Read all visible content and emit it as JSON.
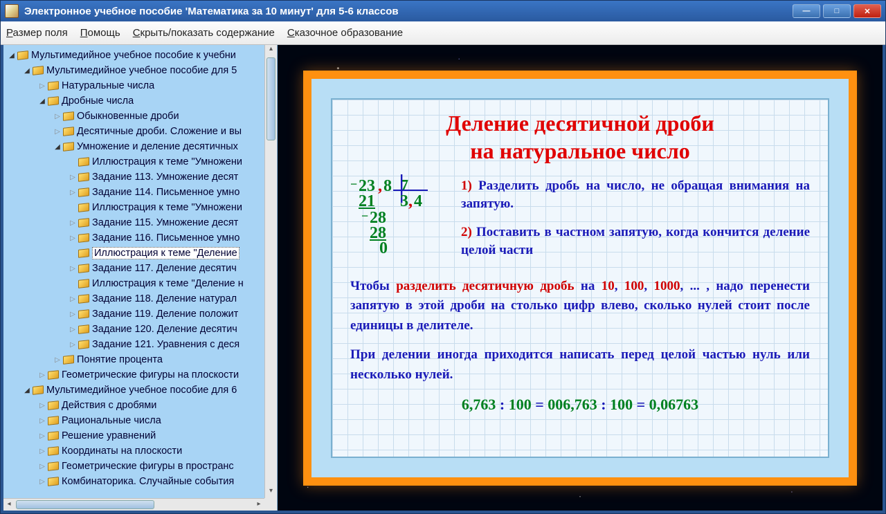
{
  "window": {
    "title": "Электронное учебное пособие 'Математика за 10 минут' для 5-6 классов"
  },
  "menu": {
    "field_size": "Размер поля",
    "help": "Помощь",
    "toggle_toc": "Скрыть/показать содержание",
    "fairy_edu": "Сказочное образование"
  },
  "tree": [
    {
      "d": 0,
      "t": "open",
      "label": "Мультимедийное учебное пособие к учебни"
    },
    {
      "d": 1,
      "t": "open",
      "label": "Мультимедийное учебное пособие для 5"
    },
    {
      "d": 2,
      "t": "closed",
      "label": "Натуральные числа"
    },
    {
      "d": 2,
      "t": "open",
      "label": "Дробные числа"
    },
    {
      "d": 3,
      "t": "closed",
      "label": "Обыкновенные дроби"
    },
    {
      "d": 3,
      "t": "closed",
      "label": "Десятичные дроби. Сложение и вы"
    },
    {
      "d": 3,
      "t": "open",
      "label": "Умножение и деление десятичных"
    },
    {
      "d": 4,
      "t": "leaf",
      "label": "Иллюстрация к теме \"Умножени"
    },
    {
      "d": 4,
      "t": "closed",
      "label": "Задание 113. Умножение десят"
    },
    {
      "d": 4,
      "t": "closed",
      "label": "Задание 114. Письменное умно"
    },
    {
      "d": 4,
      "t": "leaf",
      "label": "Иллюстрация к теме \"Умножени"
    },
    {
      "d": 4,
      "t": "closed",
      "label": "Задание 115. Умножение десят"
    },
    {
      "d": 4,
      "t": "closed",
      "label": "Задание 116. Письменное умно"
    },
    {
      "d": 4,
      "t": "leaf",
      "label": "Иллюстрация к теме \"Деление ",
      "sel": true
    },
    {
      "d": 4,
      "t": "closed",
      "label": "Задание 117. Деление десятич"
    },
    {
      "d": 4,
      "t": "leaf",
      "label": "Иллюстрация к теме \"Деление н"
    },
    {
      "d": 4,
      "t": "closed",
      "label": "Задание 118. Деление натурал"
    },
    {
      "d": 4,
      "t": "closed",
      "label": "Задание 119. Деление положит"
    },
    {
      "d": 4,
      "t": "closed",
      "label": "Задание 120. Деление десятич"
    },
    {
      "d": 4,
      "t": "closed",
      "label": "Задание 121. Уравнения с деся"
    },
    {
      "d": 3,
      "t": "closed",
      "label": "Понятие процента"
    },
    {
      "d": 2,
      "t": "closed",
      "label": "Геометрические фигуры на плоскости"
    },
    {
      "d": 1,
      "t": "open",
      "label": "Мультимедийное учебное пособие для 6"
    },
    {
      "d": 2,
      "t": "closed",
      "label": "Действия с дробями"
    },
    {
      "d": 2,
      "t": "closed",
      "label": "Рациональные числа"
    },
    {
      "d": 2,
      "t": "closed",
      "label": "Решение уравнений"
    },
    {
      "d": 2,
      "t": "closed",
      "label": "Координаты на плоскости"
    },
    {
      "d": 2,
      "t": "closed",
      "label": "Геометрические фигуры в пространс"
    },
    {
      "d": 2,
      "t": "closed",
      "label": "Комбинаторика. Случайные события"
    }
  ],
  "slide": {
    "title_l1": "Деление десятичной дроби",
    "title_l2": "на натуральное число",
    "division": {
      "dividend_int": "23",
      "dividend_comma": ",",
      "dividend_frac": "8",
      "divisor": "7",
      "quot_int": "3",
      "quot_comma": ",",
      "quot_frac": "4",
      "s1": "21",
      "r1": "28",
      "s2": "28",
      "r2": "0"
    },
    "rule1_num": "1)",
    "rule1": "Разделить дробь на число, не обращая внимания на запятую.",
    "rule2_num": "2)",
    "rule2": "Поставить в частном запятую, когда кончится деление целой части",
    "para1_a": "Чтобы ",
    "para1_red": "разделить десятичную дробь",
    "para1_b": " на ",
    "n10": "10",
    "n100": "100",
    "n1000": "1000",
    "para1_c": ", ... , надо перенести запятую в этой дроби на столько цифр влево, сколько нулей стоит после единицы в делителе.",
    "para2": "При делении иногда приходится написать перед целой частью нуль или несколько нулей.",
    "ex_a": "6,763",
    "ex_colon": " : ",
    "ex_100": "100",
    "ex_eq": " = ",
    "ex_b": "006,763",
    "ex_c": "0,06763"
  },
  "colors": {
    "title_red": "#e00000",
    "rule_blue": "#1a1ab8",
    "green": "#008020",
    "orange_frame": "#ff9010",
    "inner_blue": "#b8def5"
  }
}
